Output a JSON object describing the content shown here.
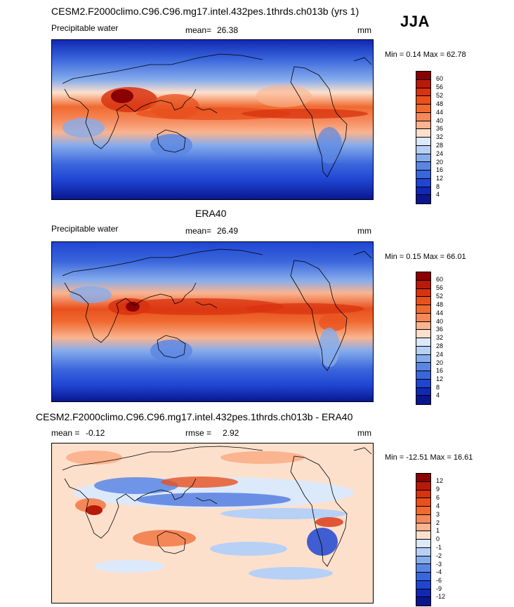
{
  "season": "JJA",
  "units": "mm",
  "panels": [
    {
      "title": "CESM2.F2000climo.C96.C96.mg17.intel.432pes.1thrds.ch013b (yrs 1)",
      "variable": "Precipitable water",
      "mean_label": "mean=",
      "mean_value": "26.38",
      "units": "mm",
      "minmax": "Min =   0.14 Max =  62.78",
      "colorbar_labels": [
        "60",
        "56",
        "52",
        "48",
        "44",
        "40",
        "36",
        "32",
        "28",
        "24",
        "20",
        "16",
        "12",
        "8",
        "4"
      ]
    },
    {
      "title": "ERA40",
      "variable": "Precipitable water",
      "mean_label": "mean=",
      "mean_value": "26.49",
      "units": "mm",
      "minmax": "Min =   0.15 Max =  66.01",
      "colorbar_labels": [
        "60",
        "56",
        "52",
        "48",
        "44",
        "40",
        "36",
        "32",
        "28",
        "24",
        "20",
        "16",
        "12",
        "8",
        "4"
      ]
    },
    {
      "title": "CESM2.F2000climo.C96.C96.mg17.intel.432pes.1thrds.ch013b - ERA40",
      "mean_label": "mean =",
      "mean_value": "-0.12",
      "rmse_label": "rmse =",
      "rmse_value": "2.92",
      "units": "mm",
      "minmax": "Min = -12.51 Max =  16.61",
      "colorbar_labels": [
        "12",
        "9",
        "6",
        "4",
        "3",
        "2",
        "1",
        "0",
        "-1",
        "-2",
        "-3",
        "-4",
        "-6",
        "-9",
        "-12"
      ]
    }
  ],
  "colors": {
    "abs_scale": [
      "#8b0000",
      "#b81a0a",
      "#d8320f",
      "#e8501e",
      "#f06a30",
      "#f5885a",
      "#fab48f",
      "#fde0cc",
      "#dce9fb",
      "#b7d0f5",
      "#86acec",
      "#5a86e3",
      "#3a66dc",
      "#1f45d2",
      "#1128b4",
      "#0a1690"
    ],
    "diff_scale": [
      "#8b0000",
      "#b81a0a",
      "#d8320f",
      "#e8501e",
      "#f06a30",
      "#f5885a",
      "#fab48f",
      "#fde0cc",
      "#dce9fb",
      "#b7d0f5",
      "#86acec",
      "#5a86e3",
      "#3a66dc",
      "#1f45d2",
      "#1128b4",
      "#0a1690"
    ],
    "coastline": "#000000"
  }
}
